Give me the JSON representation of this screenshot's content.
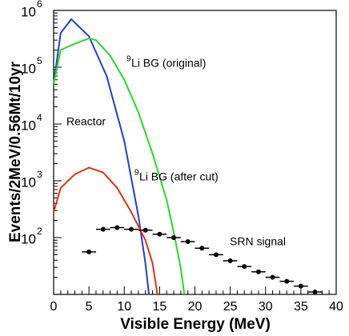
{
  "chart_data": {
    "type": "line",
    "x_label": "Visible Energy (MeV)",
    "y_label": "Events/2MeV/0.56Mt/10yr",
    "xlim": [
      0,
      40
    ],
    "xticks": [
      0,
      5,
      10,
      15,
      20,
      25,
      30,
      35,
      40
    ],
    "ylim": [
      10,
      1000000
    ],
    "log_y": true,
    "yticks": [
      {
        "value": 100,
        "label": "10",
        "sup": "2"
      },
      {
        "value": 1000,
        "label": "10",
        "sup": "3"
      },
      {
        "value": 10000,
        "label": "10",
        "sup": "4"
      },
      {
        "value": 100000,
        "label": "10",
        "sup": "5"
      },
      {
        "value": 1000000,
        "label": "10",
        "sup": "6"
      }
    ],
    "series": [
      {
        "name": "Reactor",
        "type": "line",
        "color": "#2040d8",
        "x": [
          0,
          1,
          2.5,
          5,
          7.5,
          10,
          12,
          13,
          13.5
        ],
        "values": [
          50000,
          400000,
          700000,
          350000,
          70000,
          5000,
          240,
          35,
          10
        ]
      },
      {
        "name": "Li BG (original)",
        "sup": "9",
        "type": "line",
        "color": "#22dd22",
        "x": [
          0,
          1,
          3,
          5,
          6,
          8,
          10,
          12,
          14,
          16,
          17,
          18,
          18.5
        ],
        "values": [
          50000,
          200000,
          260000,
          320000,
          300000,
          160000,
          60000,
          16000,
          3000,
          460,
          125,
          29,
          10
        ]
      },
      {
        "name": "Li BG (after cut)",
        "sup": "9",
        "type": "line",
        "color": "#e83010",
        "x": [
          0,
          1,
          3,
          5,
          7,
          9,
          11,
          13,
          14,
          14.7
        ],
        "values": [
          280,
          750,
          1300,
          1700,
          1400,
          750,
          280,
          90,
          35,
          10
        ]
      },
      {
        "name": "SRN signal",
        "type": "scatter",
        "color": "#000000",
        "x": [
          5,
          7,
          9,
          11,
          13,
          15,
          17,
          19,
          21,
          23,
          25,
          27,
          29,
          31,
          33,
          35,
          37
        ],
        "xerr": [
          1,
          1,
          1,
          1,
          1,
          1,
          1,
          1,
          1,
          1,
          1,
          1,
          1,
          1,
          1,
          1,
          1
        ],
        "values": [
          56,
          140,
          150,
          140,
          135,
          115,
          100,
          85,
          65,
          50,
          39,
          31,
          25,
          20,
          17,
          14,
          11
        ]
      }
    ]
  }
}
